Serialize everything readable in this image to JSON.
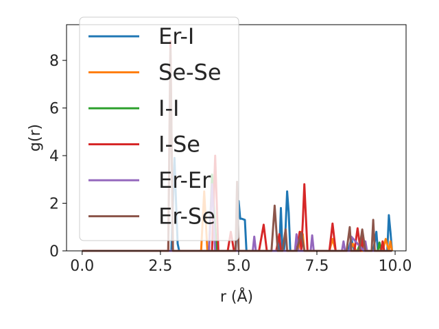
{
  "chart_data": {
    "type": "line",
    "title": "",
    "xlabel": "r (Å)",
    "ylabel": "g(r)",
    "xlim": [
      -0.5,
      10.35
    ],
    "ylim": [
      0,
      9.5
    ],
    "xticks": [
      0.0,
      2.5,
      5.0,
      7.5,
      10.0
    ],
    "xtick_labels": [
      "0.0",
      "2.5",
      "5.0",
      "7.5",
      "10.0"
    ],
    "yticks": [
      0,
      2,
      4,
      6,
      8
    ],
    "ytick_labels": [
      "0",
      "2",
      "4",
      "6",
      "8"
    ],
    "grid": false,
    "legend_position": "upper-left",
    "series": [
      {
        "name": "Er-I",
        "color": "#1f77b4",
        "x": [
          0.0,
          2.85,
          2.95,
          3.0,
          3.05,
          3.1,
          4.9,
          5.0,
          5.05,
          5.1,
          5.2,
          5.25,
          6.3,
          6.35,
          6.4,
          6.45,
          6.5,
          6.55,
          6.6,
          6.65,
          6.7,
          6.75,
          8.5,
          8.6,
          8.7,
          8.8,
          9.3,
          9.4,
          9.45,
          9.5,
          9.75,
          9.8,
          9.85,
          9.9
        ],
        "y": [
          0.0,
          0.0,
          3.9,
          2.0,
          0.3,
          0.0,
          0.0,
          2.1,
          1.35,
          1.35,
          1.3,
          0.0,
          0.0,
          1.8,
          0.0,
          0.0,
          1.0,
          2.5,
          1.6,
          0.0,
          0.0,
          0.0,
          0.0,
          0.5,
          0.0,
          0.0,
          0.0,
          0.8,
          0.0,
          0.0,
          0.0,
          1.5,
          0.8,
          0.0
        ]
      },
      {
        "name": "Se-Se",
        "color": "#ff7f0e",
        "x": [
          0.0,
          3.8,
          3.9,
          4.0,
          6.9,
          7.0,
          7.05,
          7.1,
          7.2,
          7.9,
          8.0,
          8.1,
          8.55,
          8.65,
          8.75,
          9.6,
          9.7,
          9.8,
          9.85,
          9.9
        ],
        "y": [
          0.0,
          0.0,
          2.5,
          0.0,
          0.0,
          0.8,
          0.7,
          0.0,
          0.0,
          0.0,
          0.5,
          0.0,
          0.0,
          0.3,
          0.0,
          0.0,
          0.5,
          0.0,
          0.4,
          0.0
        ]
      },
      {
        "name": "I-I",
        "color": "#2ca02c",
        "x": [
          0.0,
          4.05,
          4.1,
          4.15,
          4.2,
          4.3,
          8.8,
          8.9,
          9.0,
          9.3,
          9.45,
          9.5,
          9.55,
          9.9
        ],
        "y": [
          0.0,
          0.0,
          1.5,
          3.2,
          2.0,
          0.0,
          0.0,
          0.4,
          0.0,
          0.0,
          0.0,
          0.35,
          0.0,
          0.0
        ],
        "legend_only": false
      },
      {
        "name": "I-Se",
        "color": "#d62728",
        "x": [
          0.0,
          2.75,
          2.82,
          2.9,
          4.15,
          4.25,
          4.35,
          4.65,
          4.75,
          4.85,
          5.65,
          5.8,
          5.9,
          6.2,
          6.3,
          6.35,
          6.85,
          6.95,
          7.0,
          7.05,
          7.1,
          7.2,
          7.3,
          7.9,
          8.0,
          8.1,
          8.7,
          8.8,
          8.9,
          8.95,
          9.0,
          9.5,
          9.55,
          9.6,
          9.65,
          9.9
        ],
        "y": [
          0.0,
          0.0,
          8.8,
          0.0,
          0.0,
          4.0,
          0.0,
          0.0,
          0.8,
          0.0,
          0.0,
          1.1,
          0.0,
          0.0,
          0.7,
          0.0,
          0.0,
          0.8,
          0.0,
          1.2,
          2.8,
          0.0,
          0.0,
          0.0,
          1.15,
          0.0,
          0.0,
          0.95,
          0.0,
          0.7,
          0.0,
          0.0,
          0.0,
          0.4,
          0.0,
          0.0
        ]
      },
      {
        "name": "Er-Er",
        "color": "#9467bd",
        "x": [
          0.0,
          4.05,
          4.15,
          4.25,
          5.45,
          5.5,
          5.55,
          6.8,
          6.85,
          6.9,
          7.3,
          7.35,
          7.4,
          8.3,
          8.35,
          8.4,
          8.55,
          8.6,
          9.0,
          9.05,
          9.1,
          9.8,
          9.9
        ],
        "y": [
          0.0,
          0.0,
          2.8,
          0.0,
          0.0,
          0.6,
          0.0,
          0.0,
          0.7,
          0.0,
          0.0,
          0.65,
          0.0,
          0.0,
          0.4,
          0.0,
          0.0,
          0.6,
          0.0,
          0.4,
          0.0,
          0.0,
          0.0
        ]
      },
      {
        "name": "Er-Se",
        "color": "#8c564b",
        "x": [
          0.0,
          2.75,
          2.82,
          2.9,
          4.9,
          4.95,
          5.0,
          6.05,
          6.15,
          6.25,
          6.4,
          6.5,
          6.55,
          6.85,
          7.0,
          7.1,
          8.45,
          8.55,
          8.6,
          8.85,
          8.95,
          9.05,
          9.25,
          9.3,
          9.35,
          9.9
        ],
        "y": [
          0.0,
          0.0,
          8.5,
          0.0,
          0.0,
          2.9,
          0.0,
          0.0,
          1.9,
          0.0,
          0.0,
          0.9,
          0.0,
          0.0,
          0.75,
          0.0,
          0.0,
          1.0,
          0.0,
          0.0,
          0.9,
          0.0,
          0.0,
          1.3,
          0.0,
          0.0
        ]
      }
    ]
  }
}
